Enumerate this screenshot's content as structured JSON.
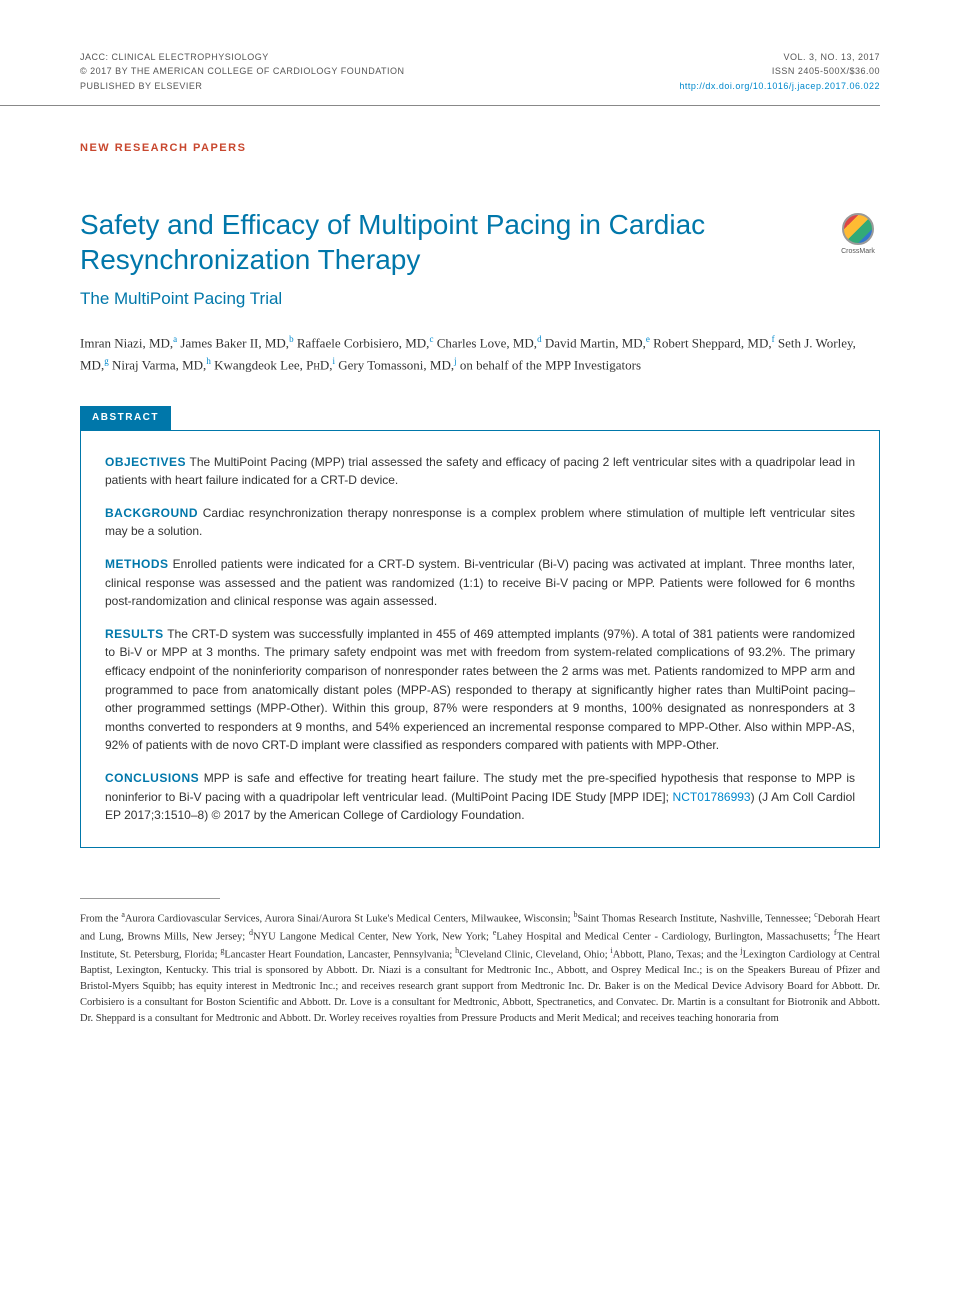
{
  "header": {
    "journal": "JACC: CLINICAL ELECTROPHYSIOLOGY",
    "copyright": "© 2017 BY THE AMERICAN COLLEGE OF CARDIOLOGY FOUNDATION",
    "publisher": "PUBLISHED BY ELSEVIER",
    "volume": "VOL. 3, NO. 13, 2017",
    "issn": "ISSN 2405-500X/$36.00",
    "doi": "http://dx.doi.org/10.1016/j.jacep.2017.06.022"
  },
  "section_label": "NEW RESEARCH PAPERS",
  "title": "Safety and Efficacy of Multipoint Pacing in Cardiac Resynchronization Therapy",
  "subtitle": "The MultiPoint Pacing Trial",
  "crossmark_label": "CrossMark",
  "authors_html": "Imran Niazi, MD,<sup>a</sup> James Baker II, MD,<sup>b</sup> Raffaele Corbisiero, MD,<sup>c</sup> Charles Love, MD,<sup>d</sup> David Martin, MD,<sup>e</sup> Robert Sheppard, MD,<sup>f</sup> Seth J. Worley, MD,<sup>g</sup> Niraj Varma, MD,<sup>h</sup> Kwangdeok Lee, P<span class='sc'>h</span>D,<sup>i</sup> Gery Tomassoni, MD,<sup>j</sup> on behalf of the MPP Investigators",
  "abstract_badge": "ABSTRACT",
  "abstract": {
    "objectives": {
      "label": "OBJECTIVES",
      "text": "The MultiPoint Pacing (MPP) trial assessed the safety and efficacy of pacing 2 left ventricular sites with a quadripolar lead in patients with heart failure indicated for a CRT-D device."
    },
    "background": {
      "label": "BACKGROUND",
      "text": "Cardiac resynchronization therapy nonresponse is a complex problem where stimulation of multiple left ventricular sites may be a solution."
    },
    "methods": {
      "label": "METHODS",
      "text": "Enrolled patients were indicated for a CRT-D system. Bi-ventricular (Bi-V) pacing was activated at implant. Three months later, clinical response was assessed and the patient was randomized (1:1) to receive Bi-V pacing or MPP. Patients were followed for 6 months post-randomization and clinical response was again assessed."
    },
    "results": {
      "label": "RESULTS",
      "text": "The CRT-D system was successfully implanted in 455 of 469 attempted implants (97%). A total of 381 patients were randomized to Bi-V or MPP at 3 months. The primary safety endpoint was met with freedom from system-related complications of 93.2%. The primary efficacy endpoint of the noninferiority comparison of nonresponder rates between the 2 arms was met. Patients randomized to MPP arm and programmed to pace from anatomically distant poles (MPP-AS) responded to therapy at significantly higher rates than MultiPoint pacing–other programmed settings (MPP-Other). Within this group, 87% were responders at 9 months, 100% designated as nonresponders at 3 months converted to responders at 9 months, and 54% experienced an incremental response compared to MPP-Other. Also within MPP-AS, 92% of patients with de novo CRT-D implant were classified as responders compared with patients with MPP-Other."
    },
    "conclusions": {
      "label": "CONCLUSIONS",
      "text_before": "MPP is safe and effective for treating heart failure. The study met the pre-specified hypothesis that response to MPP is noninferior to Bi-V pacing with a quadripolar left ventricular lead. (MultiPoint Pacing IDE Study [MPP IDE]; ",
      "trial_id": "NCT01786993",
      "text_after": ")   (J Am Coll Cardiol EP 2017;3:1510–8) © 2017 by the American College of Cardiology Foundation."
    }
  },
  "footnotes_html": "From the <sup>a</sup>Aurora Cardiovascular Services, Aurora Sinai/Aurora St Luke's Medical Centers, Milwaukee, Wisconsin; <sup>b</sup>Saint Thomas Research Institute, Nashville, Tennessee; <sup>c</sup>Deborah Heart and Lung, Browns Mills, New Jersey; <sup>d</sup>NYU Langone Medical Center, New York, New York; <sup>e</sup>Lahey Hospital and Medical Center - Cardiology, Burlington, Massachusetts; <sup>f</sup>The Heart Institute, St. Petersburg, Florida; <sup>g</sup>Lancaster Heart Foundation, Lancaster, Pennsylvania; <sup>h</sup>Cleveland Clinic, Cleveland, Ohio; <sup>i</sup>Abbott, Plano, Texas; and the <sup>j</sup>Lexington Cardiology at Central Baptist, Lexington, Kentucky. This trial is sponsored by Abbott. Dr. Niazi is a consultant for Medtronic Inc., Abbott, and Osprey Medical Inc.; is on the Speakers Bureau of Pfizer and Bristol-Myers Squibb; has equity interest in Medtronic Inc.; and receives research grant support from Medtronic Inc. Dr. Baker is on the Medical Device Advisory Board for Abbott. Dr. Corbisiero is a consultant for Boston Scientific and Abbott. Dr. Love is a consultant for Medtronic, Abbott, Spectranetics, and Convatec. Dr. Martin is a consultant for Biotronik and Abbott. Dr. Sheppard is a consultant for Medtronic and Abbott. Dr. Worley receives royalties from Pressure Products and Merit Medical; and receives teaching honoraria from",
  "colors": {
    "brand_blue": "#0077aa",
    "link_blue": "#0088cc",
    "section_orange": "#c8472e",
    "text": "#333333",
    "header_text": "#555555",
    "divider": "#888888"
  },
  "typography": {
    "title_fontsize": 28,
    "subtitle_fontsize": 17,
    "body_fontsize": 12,
    "author_fontsize": 13,
    "header_fontsize": 9,
    "footnote_fontsize": 10.5
  }
}
